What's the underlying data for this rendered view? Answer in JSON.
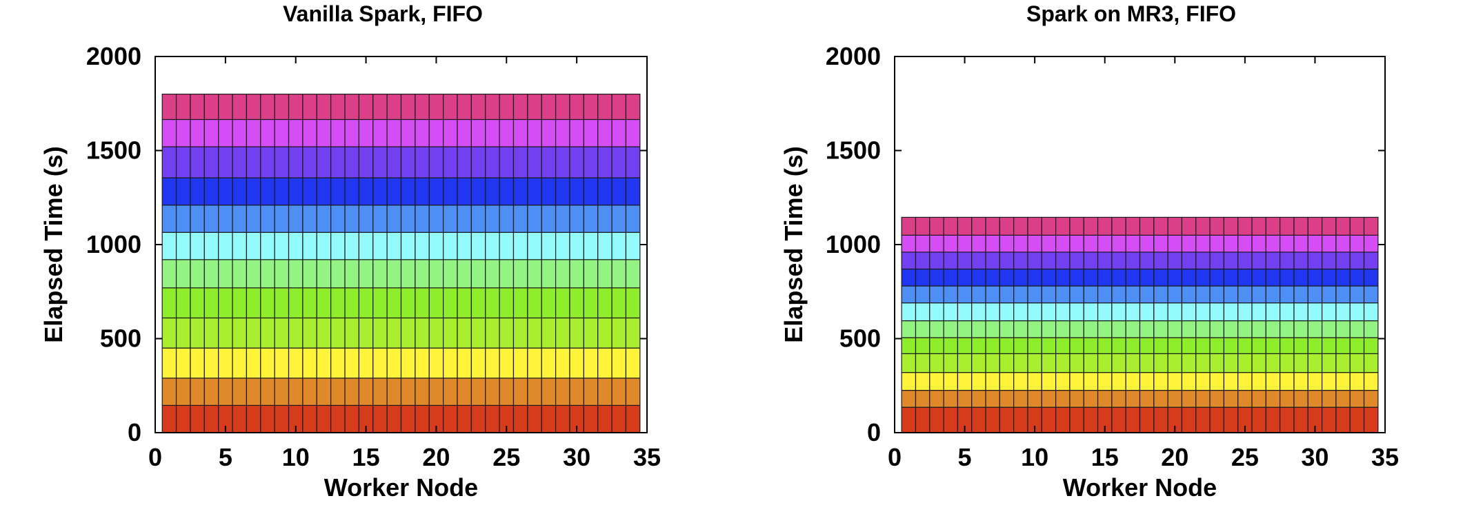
{
  "chart_data": [
    {
      "type": "bar",
      "stacked": true,
      "title": "Vanilla Spark, FIFO",
      "xlabel": "Worker Node",
      "ylabel": "Elapsed Time (s)",
      "xlim": [
        0,
        35
      ],
      "ylim": [
        0,
        2000
      ],
      "xticks": [
        0,
        5,
        10,
        15,
        20,
        25,
        30,
        35
      ],
      "yticks": [
        0,
        500,
        1000,
        1500,
        2000
      ],
      "grid": false,
      "legend": "none",
      "worker_nodes": [
        1,
        2,
        3,
        4,
        5,
        6,
        7,
        8,
        9,
        10,
        11,
        12,
        13,
        14,
        15,
        16,
        17,
        18,
        19,
        20,
        21,
        22,
        23,
        24,
        25,
        26,
        27,
        28,
        29,
        30,
        31,
        32,
        33,
        34
      ],
      "stack_boundaries": [
        0,
        145,
        290,
        450,
        610,
        770,
        920,
        1065,
        1210,
        1355,
        1520,
        1665,
        1800
      ],
      "series_colors": [
        "#d63b1c",
        "#e0892a",
        "#fff43a",
        "#a9ef30",
        "#8fee2c",
        "#93f483",
        "#93fbfb",
        "#4d8ff5",
        "#2036f0",
        "#7240f1",
        "#d54ef5",
        "#db3f87"
      ]
    },
    {
      "type": "bar",
      "stacked": true,
      "title": "Spark on MR3, FIFO",
      "xlabel": "Worker Node",
      "ylabel": "Elapsed Time (s)",
      "xlim": [
        0,
        35
      ],
      "ylim": [
        0,
        2000
      ],
      "xticks": [
        0,
        5,
        10,
        15,
        20,
        25,
        30,
        35
      ],
      "yticks": [
        0,
        500,
        1000,
        1500,
        2000
      ],
      "grid": false,
      "legend": "none",
      "worker_nodes": [
        1,
        2,
        3,
        4,
        5,
        6,
        7,
        8,
        9,
        10,
        11,
        12,
        13,
        14,
        15,
        16,
        17,
        18,
        19,
        20,
        21,
        22,
        23,
        24,
        25,
        26,
        27,
        28,
        29,
        30,
        31,
        32,
        33,
        34
      ],
      "stack_boundaries": [
        0,
        135,
        225,
        320,
        420,
        505,
        595,
        690,
        780,
        870,
        960,
        1050,
        1145
      ],
      "series_colors": [
        "#d63b1c",
        "#e0892a",
        "#fff43a",
        "#a9ef30",
        "#8fee2c",
        "#93f483",
        "#93fbfb",
        "#4d8ff5",
        "#2036f0",
        "#7240f1",
        "#d54ef5",
        "#db3f87"
      ]
    }
  ]
}
